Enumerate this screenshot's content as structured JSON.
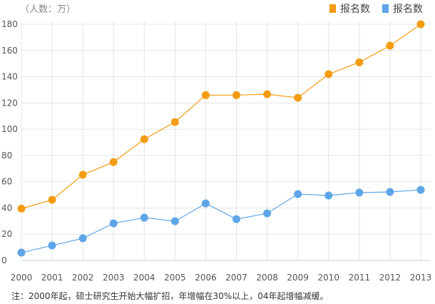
{
  "chart_data": {
    "type": "line",
    "unit_label": "（人数：万）",
    "x": [
      "2000",
      "2001",
      "2002",
      "2003",
      "2004",
      "2005",
      "2006",
      "2007",
      "2008",
      "2009",
      "2010",
      "2011",
      "2012",
      "2013"
    ],
    "ylim": [
      0,
      180
    ],
    "yticks": [
      0,
      20,
      40,
      60,
      80,
      100,
      120,
      140,
      160,
      180
    ],
    "grid": true,
    "legend_placement": "top-right",
    "series": [
      {
        "name": "报名数",
        "color": "#f39c12",
        "values": [
          39.5,
          46.2,
          65.3,
          75,
          92.4,
          105.5,
          126,
          126,
          126.7,
          124,
          142,
          151,
          163.7,
          180
        ]
      },
      {
        "name": "报名数",
        "color": "#5da5e8",
        "values": [
          6,
          11.4,
          16.9,
          28.3,
          32.6,
          29.9,
          43.5,
          31.5,
          35.9,
          50.6,
          49.5,
          51.7,
          52.2,
          53.8
        ]
      }
    ],
    "note": "注：2000年起，硕士研究生开始大幅扩招，年增幅在30%以上，04年起增幅减缓。"
  }
}
